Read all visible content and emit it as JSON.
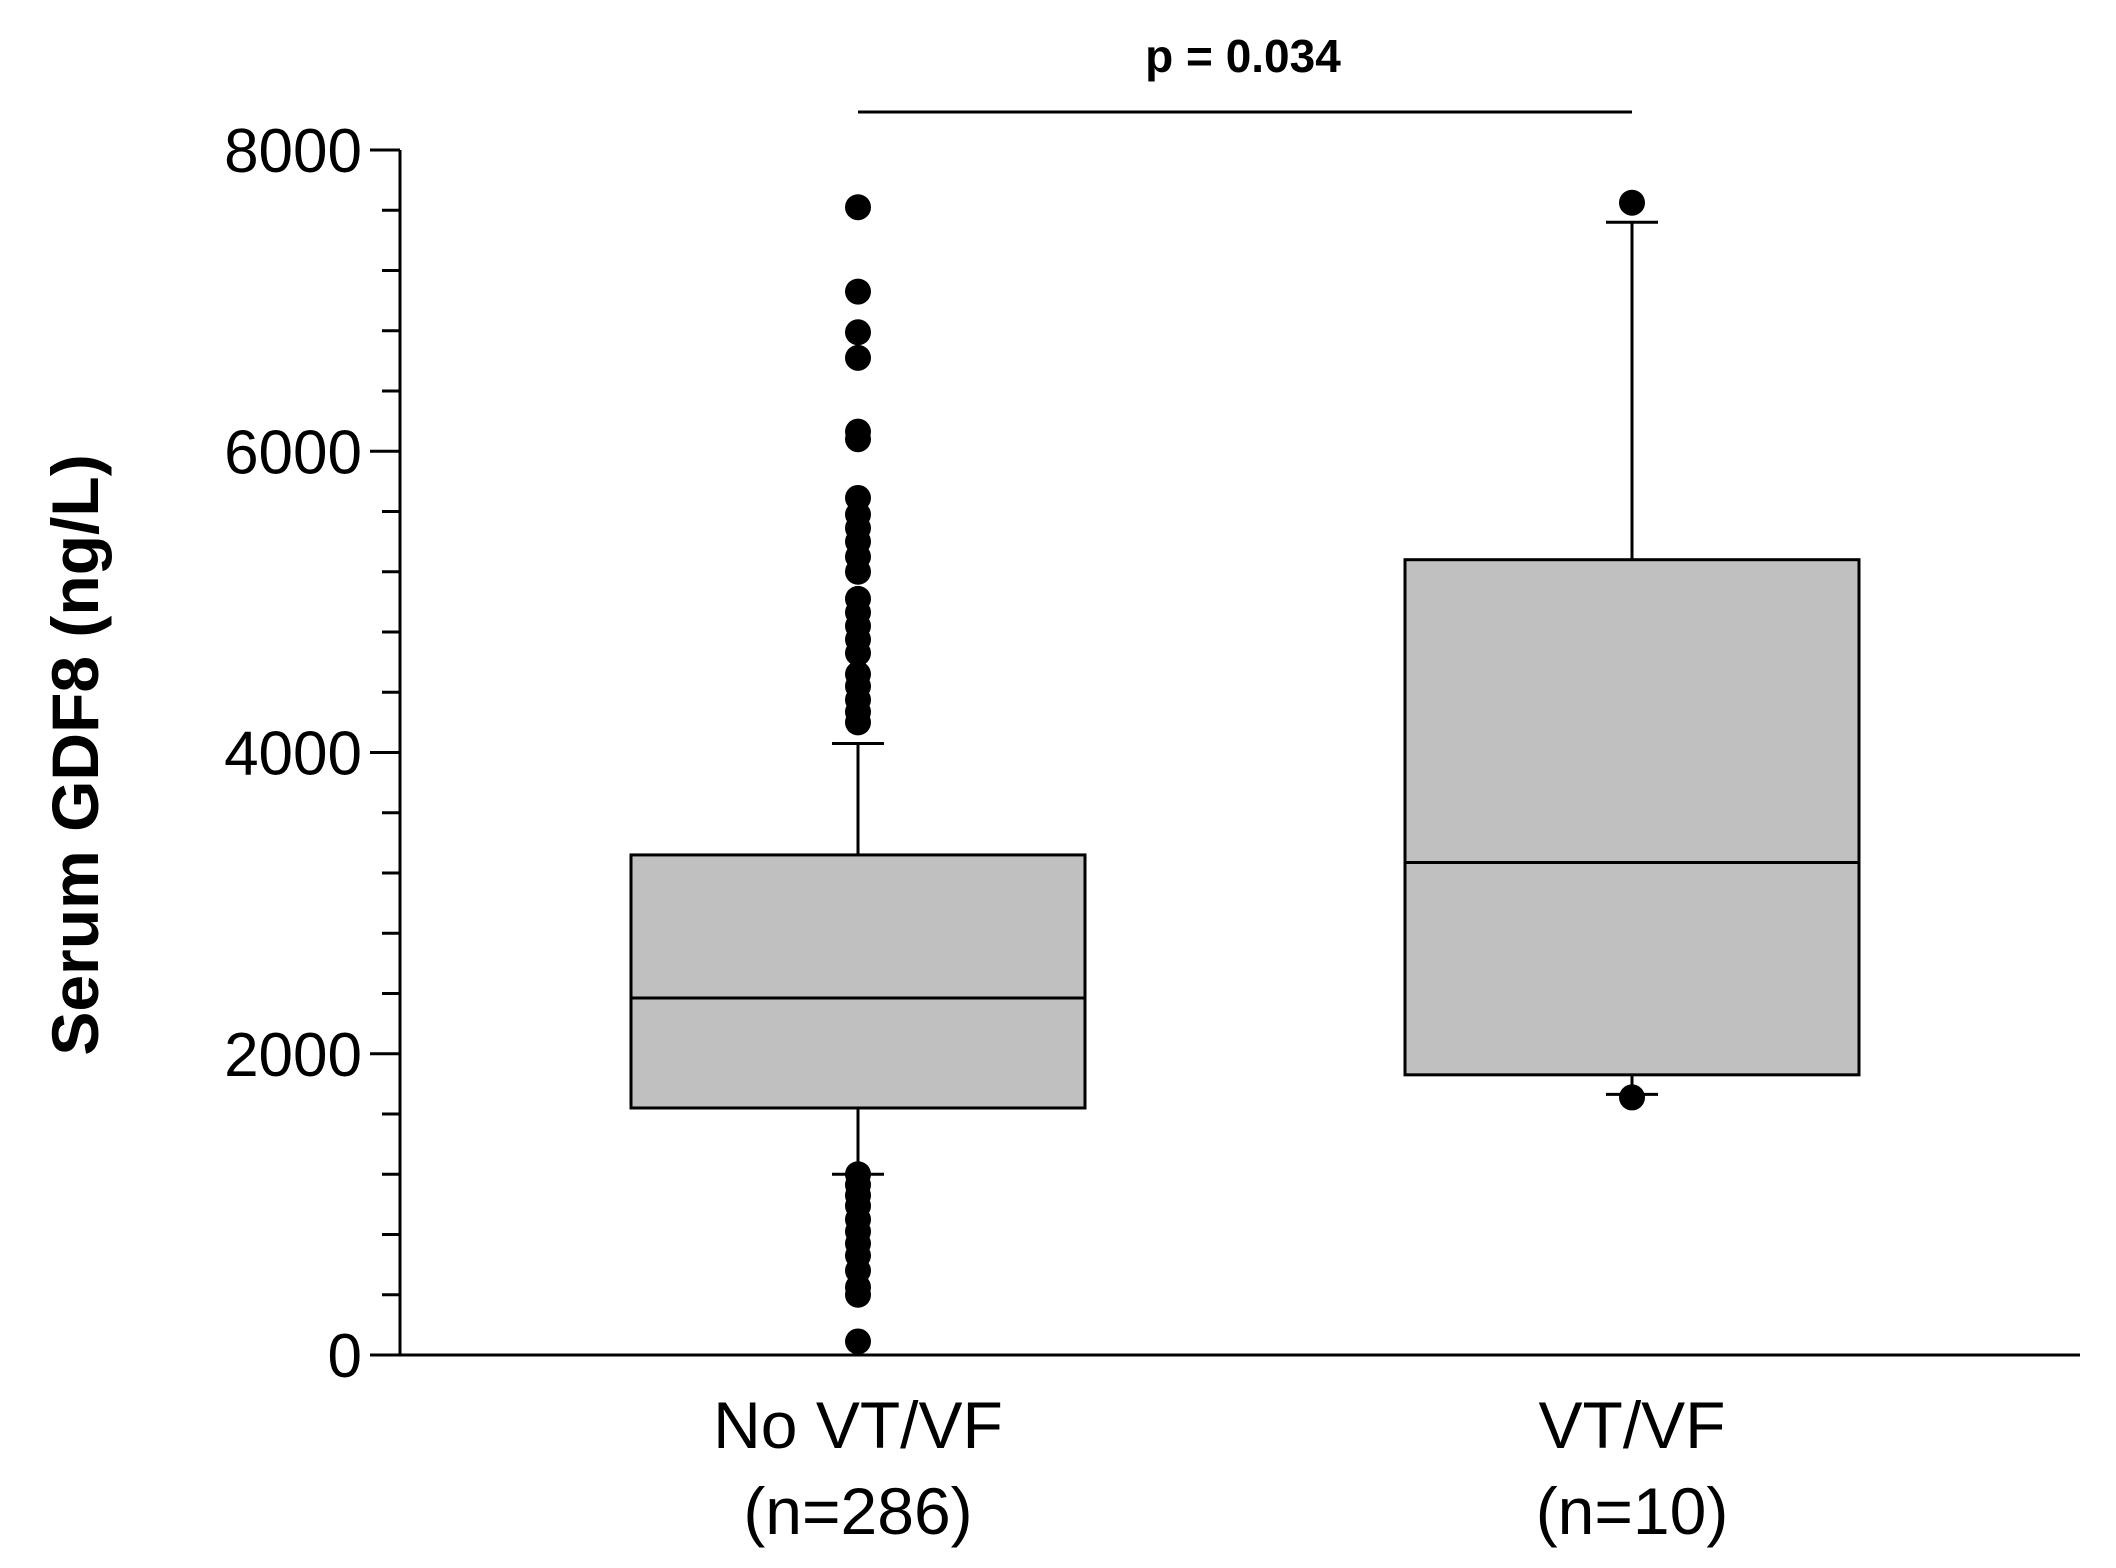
{
  "chart_data": {
    "type": "box",
    "title": "",
    "xlabel": "",
    "ylabel": "Serum GDF8 (ng/L)",
    "ylim": [
      0,
      8000
    ],
    "major_ticks": [
      0,
      2000,
      4000,
      6000,
      8000
    ],
    "minor_tick_step": 400,
    "grid": false,
    "annotation": "p = 0.034",
    "colors": {
      "box_fill": "#c0c0c0",
      "stroke": "#000000",
      "point": "#000000",
      "background": "#ffffff"
    },
    "groups": [
      {
        "name": "No VT/VF",
        "n_label": "(n=286)",
        "q1": 1640,
        "median": 2370,
        "q3": 3320,
        "whisker_low": 1200,
        "whisker_high": 4060,
        "outliers": [
          7620,
          7060,
          6790,
          6620,
          6130,
          6080,
          5690,
          5580,
          5490,
          5400,
          5300,
          5200,
          5020,
          4930,
          4840,
          4750,
          4660,
          4520,
          4440,
          4350,
          4270,
          4200,
          1200,
          1130,
          1060,
          990,
          900,
          820,
          740,
          660,
          560,
          450,
          400,
          90
        ]
      },
      {
        "name": "VT/VF",
        "n_label": "(n=10)",
        "q1": 1860,
        "median": 3270,
        "q3": 5280,
        "whisker_low": 1730,
        "whisker_high": 7520,
        "outliers": [
          7650,
          1710
        ]
      }
    ]
  }
}
